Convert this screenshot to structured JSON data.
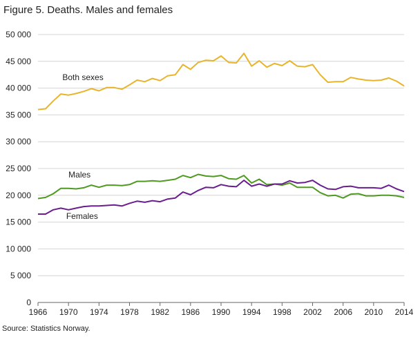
{
  "title": "Figure 5. Deaths. Males and females",
  "source": "Source: Statistics Norway.",
  "chart_data": {
    "type": "line",
    "title": "Figure 5. Deaths. Males and females",
    "xlabel": "",
    "ylabel": "",
    "ylim": [
      0,
      50000
    ],
    "xlim": [
      1966,
      2014
    ],
    "grid": true,
    "y_ticks": [
      0,
      5000,
      10000,
      15000,
      20000,
      25000,
      30000,
      35000,
      40000,
      45000,
      50000
    ],
    "y_tick_labels": [
      "0",
      "5 000",
      "10 000",
      "15 000",
      "20 000",
      "25 000",
      "30 000",
      "35 000",
      "40 000",
      "45 000",
      "50 000"
    ],
    "x_ticks": [
      1966,
      1970,
      1974,
      1978,
      1982,
      1986,
      1990,
      1994,
      1998,
      2002,
      2006,
      2010,
      2014
    ],
    "x_tick_labels": [
      "1966",
      "1970",
      "1974",
      "1978",
      "1982",
      "1986",
      "1990",
      "1994",
      "1998",
      "2002",
      "2006",
      "2010",
      "2014"
    ],
    "x": [
      1966,
      1967,
      1968,
      1969,
      1970,
      1971,
      1972,
      1973,
      1974,
      1975,
      1976,
      1977,
      1978,
      1979,
      1980,
      1981,
      1982,
      1983,
      1984,
      1985,
      1986,
      1987,
      1988,
      1989,
      1990,
      1991,
      1992,
      1993,
      1994,
      1995,
      1996,
      1997,
      1998,
      1999,
      2000,
      2001,
      2002,
      2003,
      2004,
      2005,
      2006,
      2007,
      2008,
      2009,
      2010,
      2011,
      2012,
      2013,
      2014
    ],
    "series": [
      {
        "name": "Both sexes",
        "color": "#e8b52a",
        "values": [
          36000,
          36150,
          37600,
          38900,
          38700,
          39000,
          39400,
          39900,
          39500,
          40100,
          40100,
          39800,
          40600,
          41500,
          41200,
          41800,
          41400,
          42300,
          42500,
          44400,
          43500,
          44800,
          45200,
          45100,
          46000,
          44800,
          44700,
          46500,
          44100,
          45100,
          43900,
          44600,
          44200,
          45100,
          44100,
          44000,
          44400,
          42500,
          41100,
          41200,
          41200,
          42000,
          41700,
          41500,
          41400,
          41500,
          41900,
          41300,
          40400
        ]
      },
      {
        "name": "Males",
        "color": "#4e9a20",
        "values": [
          19400,
          19600,
          20300,
          21300,
          21300,
          21200,
          21400,
          21900,
          21500,
          21900,
          21900,
          21800,
          22000,
          22600,
          22600,
          22700,
          22600,
          22800,
          23000,
          23700,
          23300,
          23900,
          23600,
          23500,
          23700,
          23100,
          23000,
          23700,
          22300,
          23000,
          22000,
          22100,
          21900,
          22300,
          21500,
          21500,
          21500,
          20500,
          19900,
          20000,
          19500,
          20200,
          20300,
          19900,
          19900,
          20000,
          20000,
          19900,
          19600
        ]
      },
      {
        "name": "Females",
        "color": "#6a1d8e",
        "values": [
          16500,
          16500,
          17300,
          17600,
          17300,
          17600,
          17900,
          18000,
          18000,
          18100,
          18200,
          18000,
          18500,
          18900,
          18700,
          19000,
          18800,
          19300,
          19500,
          20600,
          20100,
          20900,
          21500,
          21400,
          22000,
          21700,
          21600,
          22800,
          21700,
          22100,
          21700,
          22100,
          22100,
          22700,
          22300,
          22400,
          22800,
          21900,
          21200,
          21100,
          21600,
          21700,
          21400,
          21400,
          21400,
          21300,
          21900,
          21200,
          20700
        ]
      }
    ]
  }
}
